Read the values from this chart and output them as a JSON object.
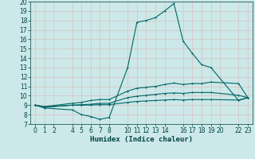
{
  "xlabel": "Humidex (Indice chaleur)",
  "bg_color": "#cce8e8",
  "grid_color": "#b8d8d8",
  "line_color": "#006666",
  "xlim": [
    -0.5,
    23.5
  ],
  "ylim": [
    7,
    20
  ],
  "xticks": [
    0,
    1,
    2,
    4,
    5,
    6,
    7,
    8,
    10,
    11,
    12,
    13,
    14,
    16,
    17,
    18,
    19,
    20,
    22,
    23
  ],
  "yticks": [
    7,
    8,
    9,
    10,
    11,
    12,
    13,
    14,
    15,
    16,
    17,
    18,
    19,
    20
  ],
  "line1_x": [
    0,
    1,
    4,
    5,
    6,
    7,
    8,
    10,
    11,
    12,
    13,
    14,
    15,
    16,
    17,
    18,
    19,
    22,
    23
  ],
  "line1_y": [
    9.0,
    8.7,
    8.5,
    8.0,
    7.8,
    7.5,
    7.7,
    13.0,
    17.8,
    18.0,
    18.3,
    19.0,
    19.8,
    15.8,
    14.5,
    13.3,
    13.0,
    9.5,
    9.8
  ],
  "line2_x": [
    0,
    1,
    4,
    5,
    6,
    7,
    8,
    10,
    11,
    12,
    13,
    14,
    15,
    16,
    17,
    18,
    19,
    22,
    23
  ],
  "line2_y": [
    9.0,
    8.85,
    9.2,
    9.3,
    9.5,
    9.6,
    9.6,
    10.5,
    10.8,
    10.9,
    11.0,
    11.2,
    11.35,
    11.2,
    11.3,
    11.3,
    11.45,
    11.3,
    9.8
  ],
  "line3_x": [
    0,
    1,
    4,
    5,
    6,
    7,
    8,
    10,
    11,
    12,
    13,
    14,
    15,
    16,
    17,
    18,
    19,
    22,
    23
  ],
  "line3_y": [
    9.0,
    8.82,
    9.0,
    9.05,
    9.1,
    9.2,
    9.2,
    9.8,
    9.95,
    10.05,
    10.15,
    10.25,
    10.3,
    10.25,
    10.35,
    10.35,
    10.35,
    10.05,
    9.8
  ],
  "line4_x": [
    0,
    1,
    4,
    5,
    6,
    7,
    8,
    10,
    11,
    12,
    13,
    14,
    15,
    16,
    17,
    18,
    19,
    22,
    23
  ],
  "line4_y": [
    9.0,
    8.78,
    9.0,
    9.0,
    9.02,
    9.05,
    9.05,
    9.3,
    9.4,
    9.45,
    9.5,
    9.55,
    9.6,
    9.55,
    9.6,
    9.6,
    9.6,
    9.55,
    9.8
  ]
}
